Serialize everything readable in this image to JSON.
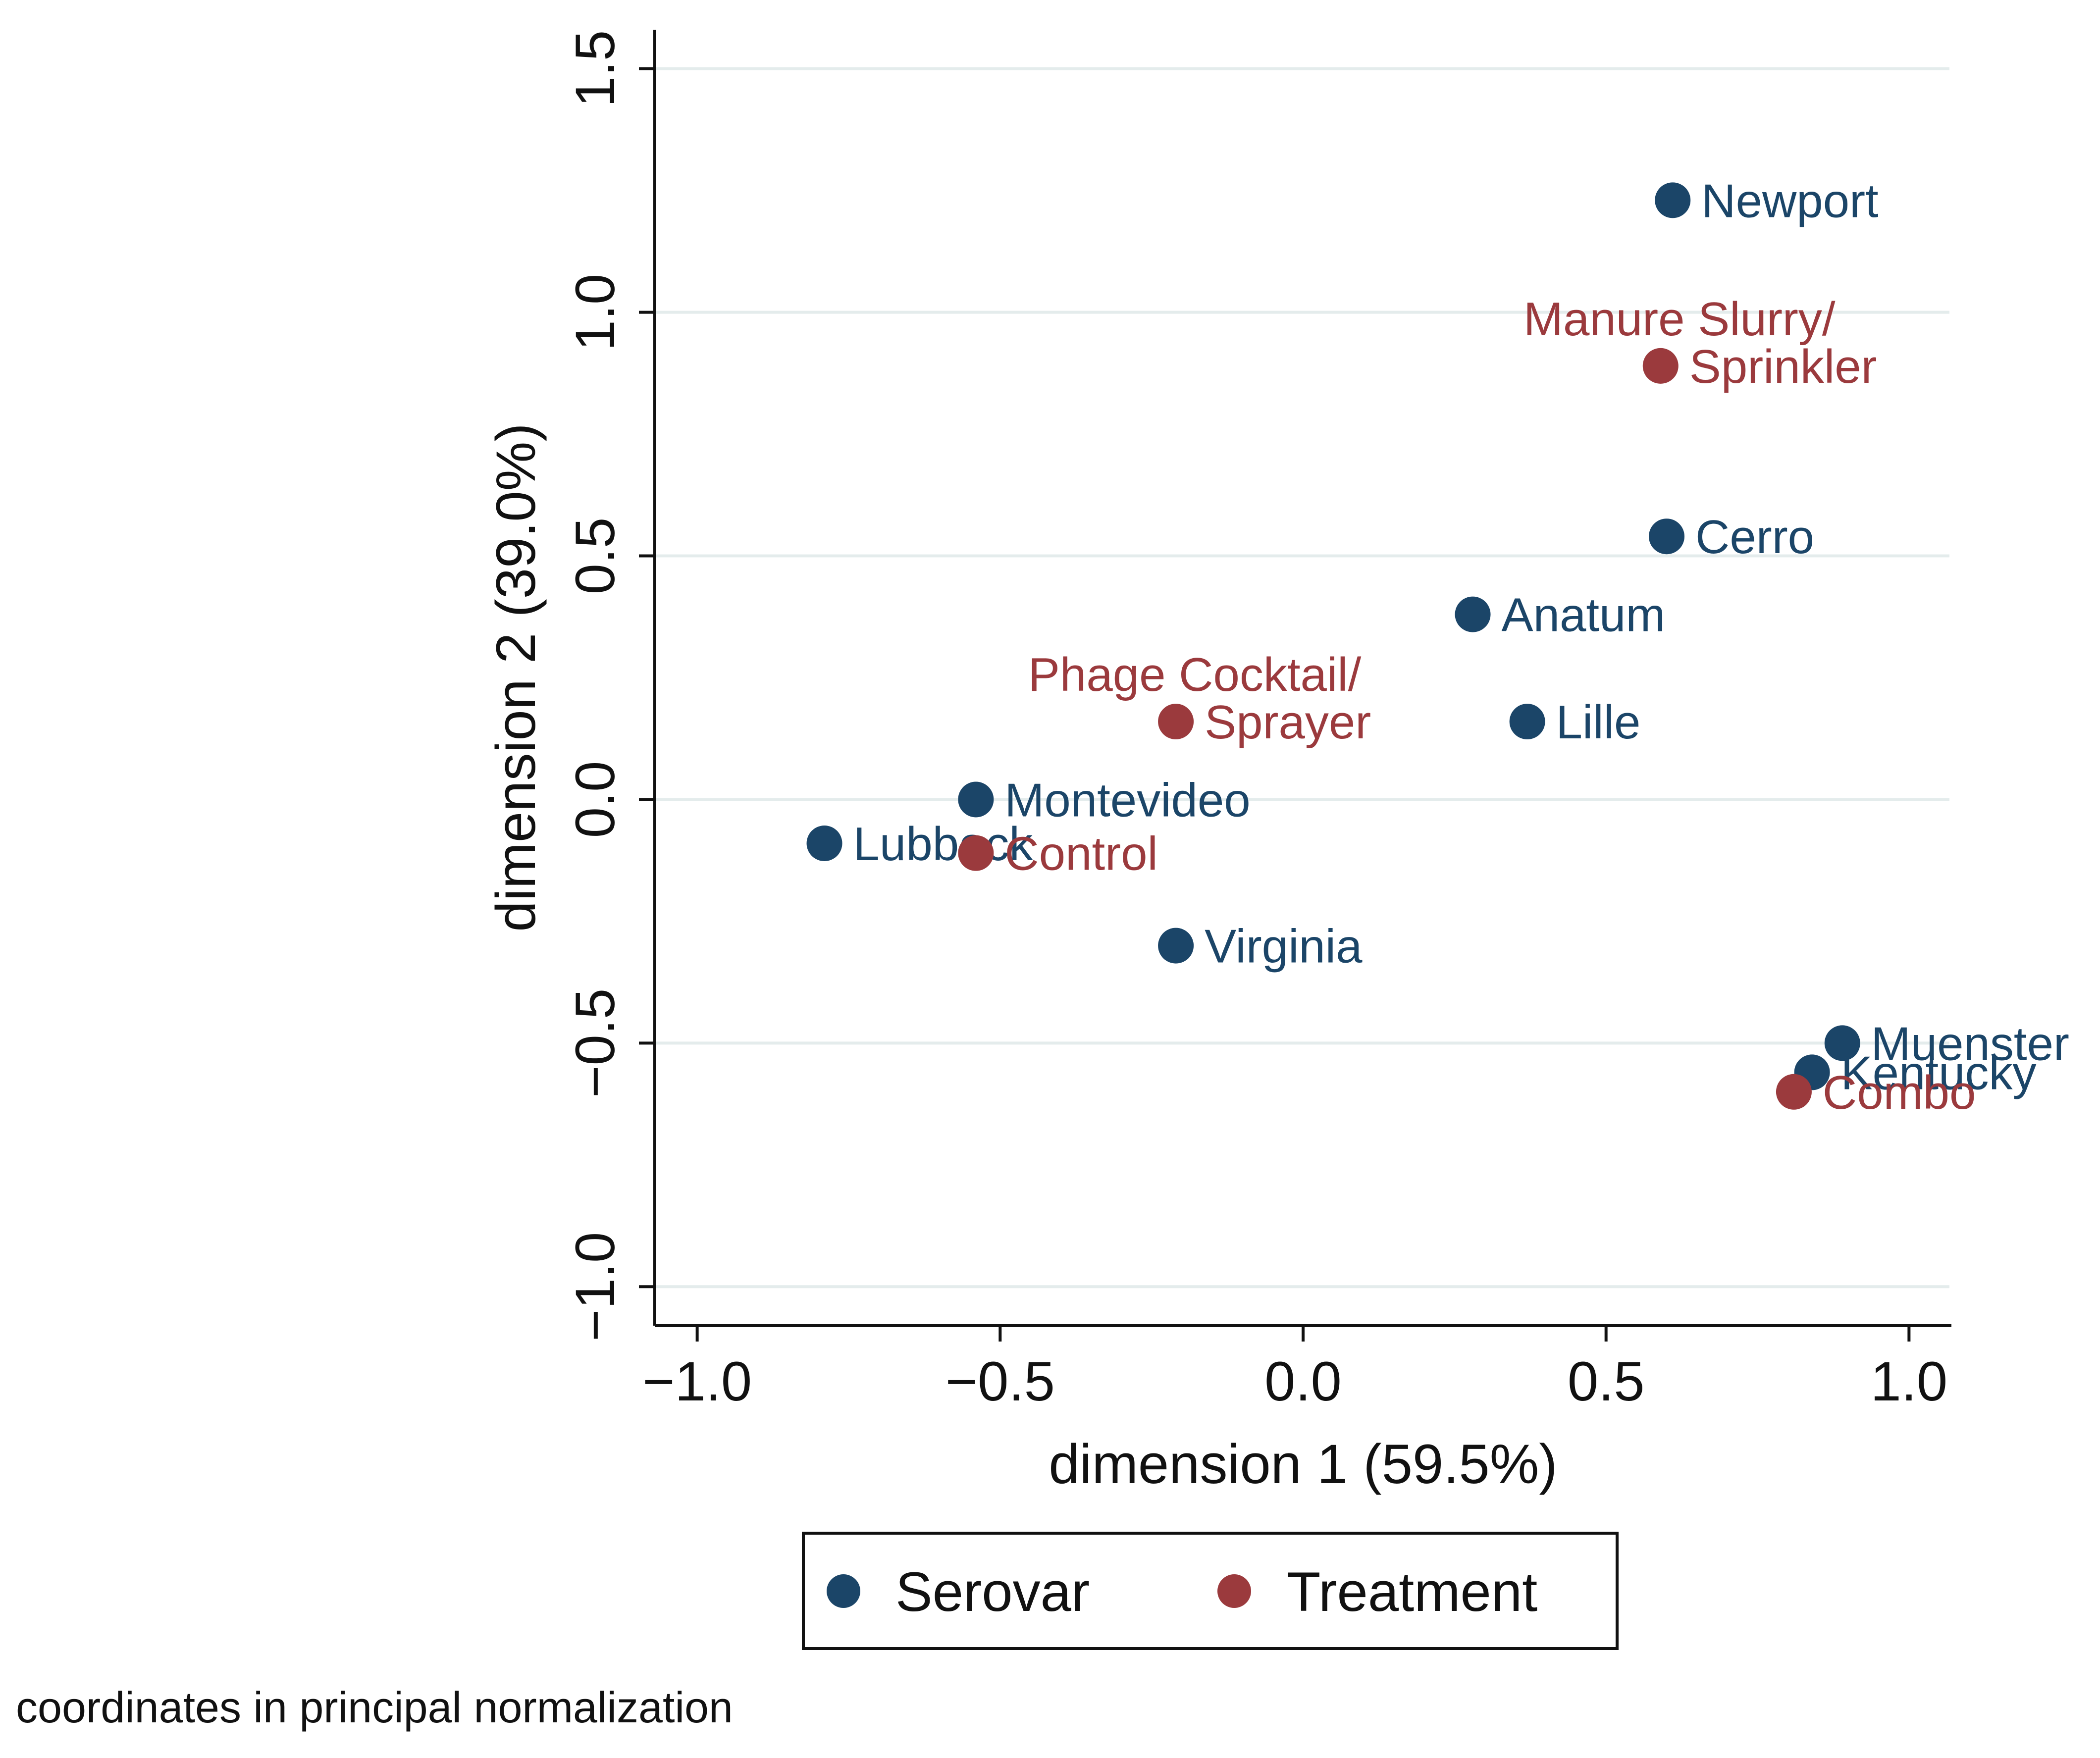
{
  "chart_data": {
    "type": "scatter",
    "xlabel": "dimension 1 (59.5%)",
    "ylabel": "dimension 2 (39.0%)",
    "xlim": [
      -1.07,
      1.07
    ],
    "ylim": [
      -1.08,
      1.58
    ],
    "xticks": [
      {
        "value": -1.0,
        "label": "−1.0"
      },
      {
        "value": -0.5,
        "label": "−0.5"
      },
      {
        "value": 0.0,
        "label": "0.0"
      },
      {
        "value": 0.5,
        "label": "0.5"
      },
      {
        "value": 1.0,
        "label": "1.0"
      }
    ],
    "yticks": [
      {
        "value": -1.0,
        "label": "−1.0"
      },
      {
        "value": -0.5,
        "label": "−0.5"
      },
      {
        "value": 0.0,
        "label": "0.0"
      },
      {
        "value": 0.5,
        "label": "0.5"
      },
      {
        "value": 1.0,
        "label": "1.0"
      },
      {
        "value": 1.5,
        "label": "1.5"
      }
    ],
    "grid": "horizontal",
    "series": [
      {
        "name": "Serovar",
        "color": "#1b4568",
        "points": [
          {
            "label": "Newport",
            "x": 0.61,
            "y": 1.23
          },
          {
            "label": "Cerro",
            "x": 0.6,
            "y": 0.54
          },
          {
            "label": "Anatum",
            "x": 0.28,
            "y": 0.38
          },
          {
            "label": "Lille",
            "x": 0.37,
            "y": 0.16
          },
          {
            "label": "Montevideo",
            "x": -0.54,
            "y": 0.0
          },
          {
            "label": "Lubbock",
            "x": -0.79,
            "y": -0.09
          },
          {
            "label": "Virginia",
            "x": -0.21,
            "y": -0.3
          },
          {
            "label": "Muenster",
            "x": 0.89,
            "y": -0.5
          },
          {
            "label": "Kentucky",
            "x": 0.84,
            "y": -0.56
          }
        ]
      },
      {
        "name": "Treatment",
        "color": "#9b3a3d",
        "points": [
          {
            "label": "Manure Slurry/",
            "label2": "Sprinkler",
            "x": 0.59,
            "y": 0.89
          },
          {
            "label": "Phage Cocktail/",
            "label2": "Sprayer",
            "x": -0.21,
            "y": 0.16
          },
          {
            "label": "Control",
            "x": -0.54,
            "y": -0.11
          },
          {
            "label": "Combo",
            "x": 0.81,
            "y": -0.6
          }
        ]
      }
    ],
    "legend": {
      "position": "bottom",
      "entries": [
        "Serovar",
        "Treatment"
      ]
    },
    "note": "coordinates in principal normalization"
  }
}
